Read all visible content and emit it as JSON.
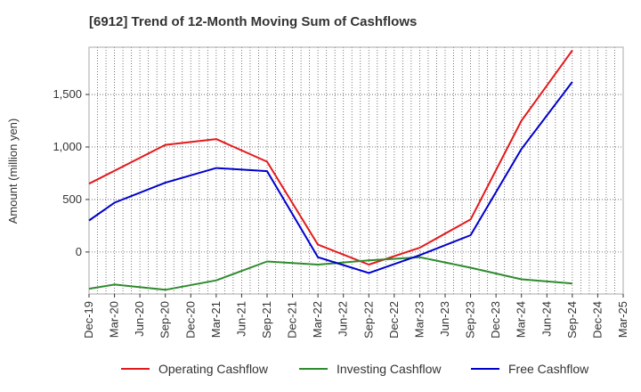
{
  "chart_data": {
    "type": "line",
    "title": "[6912]  Trend of 12-Month Moving Sum of Cashflows",
    "ylabel": "Amount (million yen)",
    "xlabel": "",
    "x_ticks": [
      "Dec-19",
      "Mar-20",
      "Jun-20",
      "Sep-20",
      "Dec-20",
      "Mar-21",
      "Jun-21",
      "Sep-21",
      "Dec-21",
      "Mar-22",
      "Jun-22",
      "Sep-22",
      "Dec-22",
      "Mar-23",
      "Jun-23",
      "Sep-23",
      "Dec-23",
      "Mar-24",
      "Jun-24",
      "Sep-24",
      "Dec-24",
      "Mar-25"
    ],
    "x_tick_labels": [
      "Dec-19",
      "Mar-20",
      "Jun-20",
      "Sep-20",
      "Dec-20",
      "Mar-21",
      "Jun-21",
      "Sep-21",
      "Dec-21",
      "Mar-22",
      "Jun-22",
      "Sep-22",
      "Dec-22",
      "Mar-23",
      "Jun-23",
      "Sep-23",
      "Dec-23",
      "Mar-24",
      "Jun-24",
      "Sep-24",
      "Dec-24",
      "Mar-25"
    ],
    "y_ticks": [
      0,
      500,
      1000,
      1500
    ],
    "y_tick_labels": [
      "0",
      "500",
      "1,000",
      "1,500"
    ],
    "ylim": [
      -400,
      1950
    ],
    "grid": true,
    "legend_position": "bottom",
    "series": [
      {
        "name": "Operating Cashflow",
        "color": "#e31a1c",
        "points": [
          {
            "x": "Dec-19",
            "y": 650
          },
          {
            "x": "Sep-20",
            "y": 1020
          },
          {
            "x": "Mar-21",
            "y": 1075
          },
          {
            "x": "Sep-21",
            "y": 860
          },
          {
            "x": "Mar-22",
            "y": 70
          },
          {
            "x": "Sep-22",
            "y": -120
          },
          {
            "x": "Mar-23",
            "y": 40
          },
          {
            "x": "Sep-23",
            "y": 310
          },
          {
            "x": "Mar-24",
            "y": 1250
          },
          {
            "x": "Sep-24",
            "y": 1920
          }
        ]
      },
      {
        "name": "Investing Cashflow",
        "color": "#2e8b2e",
        "points": [
          {
            "x": "Dec-19",
            "y": -350
          },
          {
            "x": "Mar-20",
            "y": -310
          },
          {
            "x": "Sep-20",
            "y": -360
          },
          {
            "x": "Mar-21",
            "y": -270
          },
          {
            "x": "Sep-21",
            "y": -90
          },
          {
            "x": "Mar-22",
            "y": -120
          },
          {
            "x": "Sep-22",
            "y": -80
          },
          {
            "x": "Mar-23",
            "y": -50
          },
          {
            "x": "Sep-23",
            "y": -150
          },
          {
            "x": "Mar-24",
            "y": -260
          },
          {
            "x": "Sep-24",
            "y": -300
          }
        ]
      },
      {
        "name": "Free Cashflow",
        "color": "#0000cc",
        "points": [
          {
            "x": "Dec-19",
            "y": 300
          },
          {
            "x": "Mar-20",
            "y": 470
          },
          {
            "x": "Sep-20",
            "y": 660
          },
          {
            "x": "Mar-21",
            "y": 800
          },
          {
            "x": "Sep-21",
            "y": 770
          },
          {
            "x": "Mar-22",
            "y": -50
          },
          {
            "x": "Sep-22",
            "y": -200
          },
          {
            "x": "Mar-23",
            "y": -30
          },
          {
            "x": "Sep-23",
            "y": 160
          },
          {
            "x": "Mar-24",
            "y": 980
          },
          {
            "x": "Sep-24",
            "y": 1620
          }
        ]
      }
    ]
  }
}
